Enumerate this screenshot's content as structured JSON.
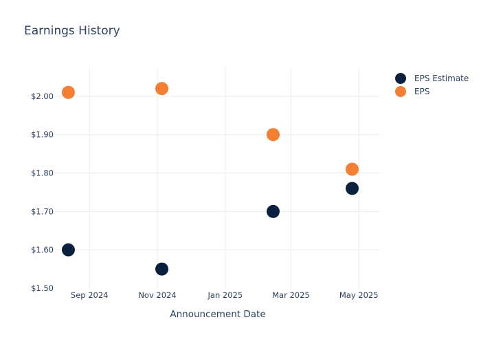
{
  "chart_data": {
    "type": "scatter",
    "title": "Earnings History",
    "xlabel": "Announcement Date",
    "ylabel": "",
    "x_ticks": [
      "2024-09-01",
      "2024-11-01",
      "2025-01-01",
      "2025-03-01",
      "2025-05-01"
    ],
    "x_tick_labels": [
      "Sep 2024",
      "Nov 2024",
      "Jan 2025",
      "Mar 2025",
      "May 2025"
    ],
    "xlim": [
      "2024-08-01",
      "2025-05-20"
    ],
    "y_ticks": [
      1.5,
      1.6,
      1.7,
      1.8,
      1.9,
      2.0
    ],
    "y_tick_labels": [
      "$1.50",
      "$1.60",
      "$1.70",
      "$1.80",
      "$1.90",
      "$2.00"
    ],
    "ylim": [
      1.5,
      2.075
    ],
    "grid": true,
    "legend_position": "top-right",
    "series": [
      {
        "name": "EPS Estimate",
        "color": "#0b1f3f",
        "points": [
          {
            "x": "2024-08-13",
            "y": 1.6
          },
          {
            "x": "2024-11-05",
            "y": 1.55
          },
          {
            "x": "2025-02-13",
            "y": 1.7
          },
          {
            "x": "2025-04-25",
            "y": 1.76
          }
        ]
      },
      {
        "name": "EPS",
        "color": "#f47e32",
        "points": [
          {
            "x": "2024-08-13",
            "y": 2.01
          },
          {
            "x": "2024-11-05",
            "y": 2.02
          },
          {
            "x": "2025-02-13",
            "y": 1.9
          },
          {
            "x": "2025-04-25",
            "y": 1.81
          }
        ]
      }
    ]
  }
}
